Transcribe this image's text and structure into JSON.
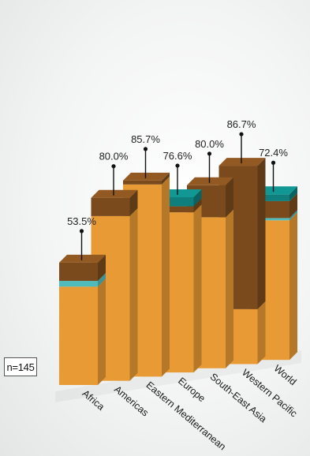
{
  "sample_note": "n=145",
  "colors": {
    "orange": "#e89a35",
    "brown": "#7a4a1c",
    "teal": "#0e7f7c",
    "light_teal": "#4fbcbb"
  },
  "chart_data": {
    "type": "bar",
    "stacked": true,
    "orientation": "3d-perspective",
    "categories": [
      "Africa",
      "Americas",
      "Eastern Mediterranean",
      "Europe",
      "South-East Asia",
      "Western Pacific",
      "World"
    ],
    "totals": [
      53.5,
      80.0,
      85.7,
      76.6,
      80.0,
      86.7,
      72.4
    ],
    "total_labels": [
      "53.5%",
      "80.0%",
      "85.7%",
      "76.6%",
      "80.0%",
      "86.7%",
      "72.4%"
    ],
    "series": [
      {
        "color": "#e89a35",
        "values": [
          43,
          72,
          84,
          70,
          66,
          24,
          61
        ]
      },
      {
        "color": "#4fbcbb",
        "values": [
          2.5,
          0,
          0,
          0,
          0,
          0,
          1.0
        ]
      },
      {
        "color": "#7a4a1c",
        "values": [
          8.0,
          8.0,
          1.7,
          2.6,
          14.0,
          62.7,
          7.4
        ]
      },
      {
        "color": "#0e7f7c",
        "values": [
          0,
          0,
          0,
          4.0,
          0,
          0,
          3.0
        ]
      }
    ],
    "ylim": [
      0,
      100
    ],
    "grid": false,
    "legend": "none"
  }
}
